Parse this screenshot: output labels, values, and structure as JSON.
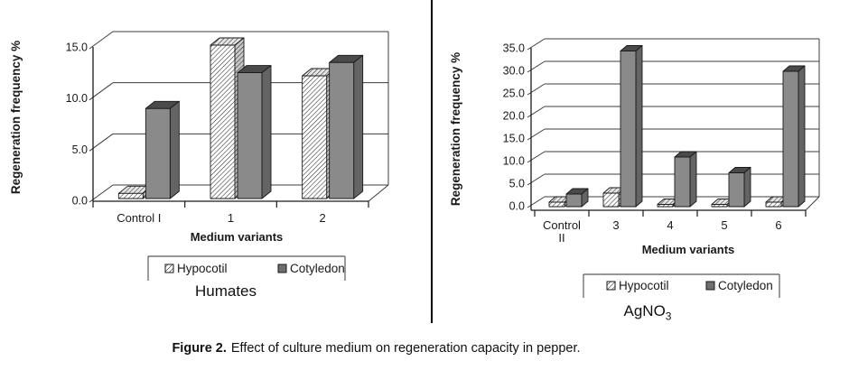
{
  "figure_caption": {
    "label": "Figure 2.",
    "text": "Effect of culture medium on regeneration capacity in pepper."
  },
  "chart_data": [
    {
      "type": "bar",
      "group_title": "Humates",
      "title_main": "Humates",
      "title_sub": "",
      "ylabel": "Regeneration frequency %",
      "xlabel": "Medium variants",
      "categories": [
        "Control I",
        "1",
        "2"
      ],
      "series": [
        {
          "name": "Hypocotil",
          "style": "hatched",
          "values": [
            0.5,
            15.0,
            12.0
          ]
        },
        {
          "name": "Cotyledon",
          "style": "solid-gray",
          "values": [
            8.8,
            12.3,
            13.3
          ]
        }
      ],
      "ylim": [
        0,
        15
      ],
      "yticks": [
        "0.0",
        "5.0",
        "10.0",
        "15.0"
      ],
      "grid": true,
      "legend_position": "bottom",
      "effect": "3d"
    },
    {
      "type": "bar",
      "group_title": "AgNO3",
      "title_main": "AgNO",
      "title_sub": "3",
      "ylabel": "Regeneration frequency %",
      "xlabel": "Medium variants",
      "categories": [
        "Control II",
        "3",
        "4",
        "5",
        "6"
      ],
      "series": [
        {
          "name": "Hypocotil",
          "style": "hatched",
          "values": [
            1.0,
            3.0,
            0.5,
            0.5,
            1.0
          ]
        },
        {
          "name": "Cotyledon",
          "style": "solid-gray",
          "values": [
            2.8,
            34.5,
            11.0,
            7.5,
            30.0
          ]
        }
      ],
      "ylim": [
        0,
        35
      ],
      "yticks": [
        "0.0",
        "5.0",
        "10.0",
        "15.0",
        "20.0",
        "25.0",
        "30.0",
        "35.0"
      ],
      "grid": true,
      "legend_position": "bottom",
      "effect": "3d"
    }
  ],
  "colors": {
    "cotyledon_front": "#8a8a8a",
    "cotyledon_side": "#646464",
    "cotyledon_top": "#4a4a4a",
    "cotyledon_swatch": "#6e6e6e",
    "hypocotil_base": "#ffffff",
    "hatch_stroke": "#1a1a1a",
    "outline": "#1a1a1a",
    "gridline": "#3c3c3c",
    "axis": "#1a1a1a",
    "legend_border": "#595959",
    "divider": "#000000"
  }
}
